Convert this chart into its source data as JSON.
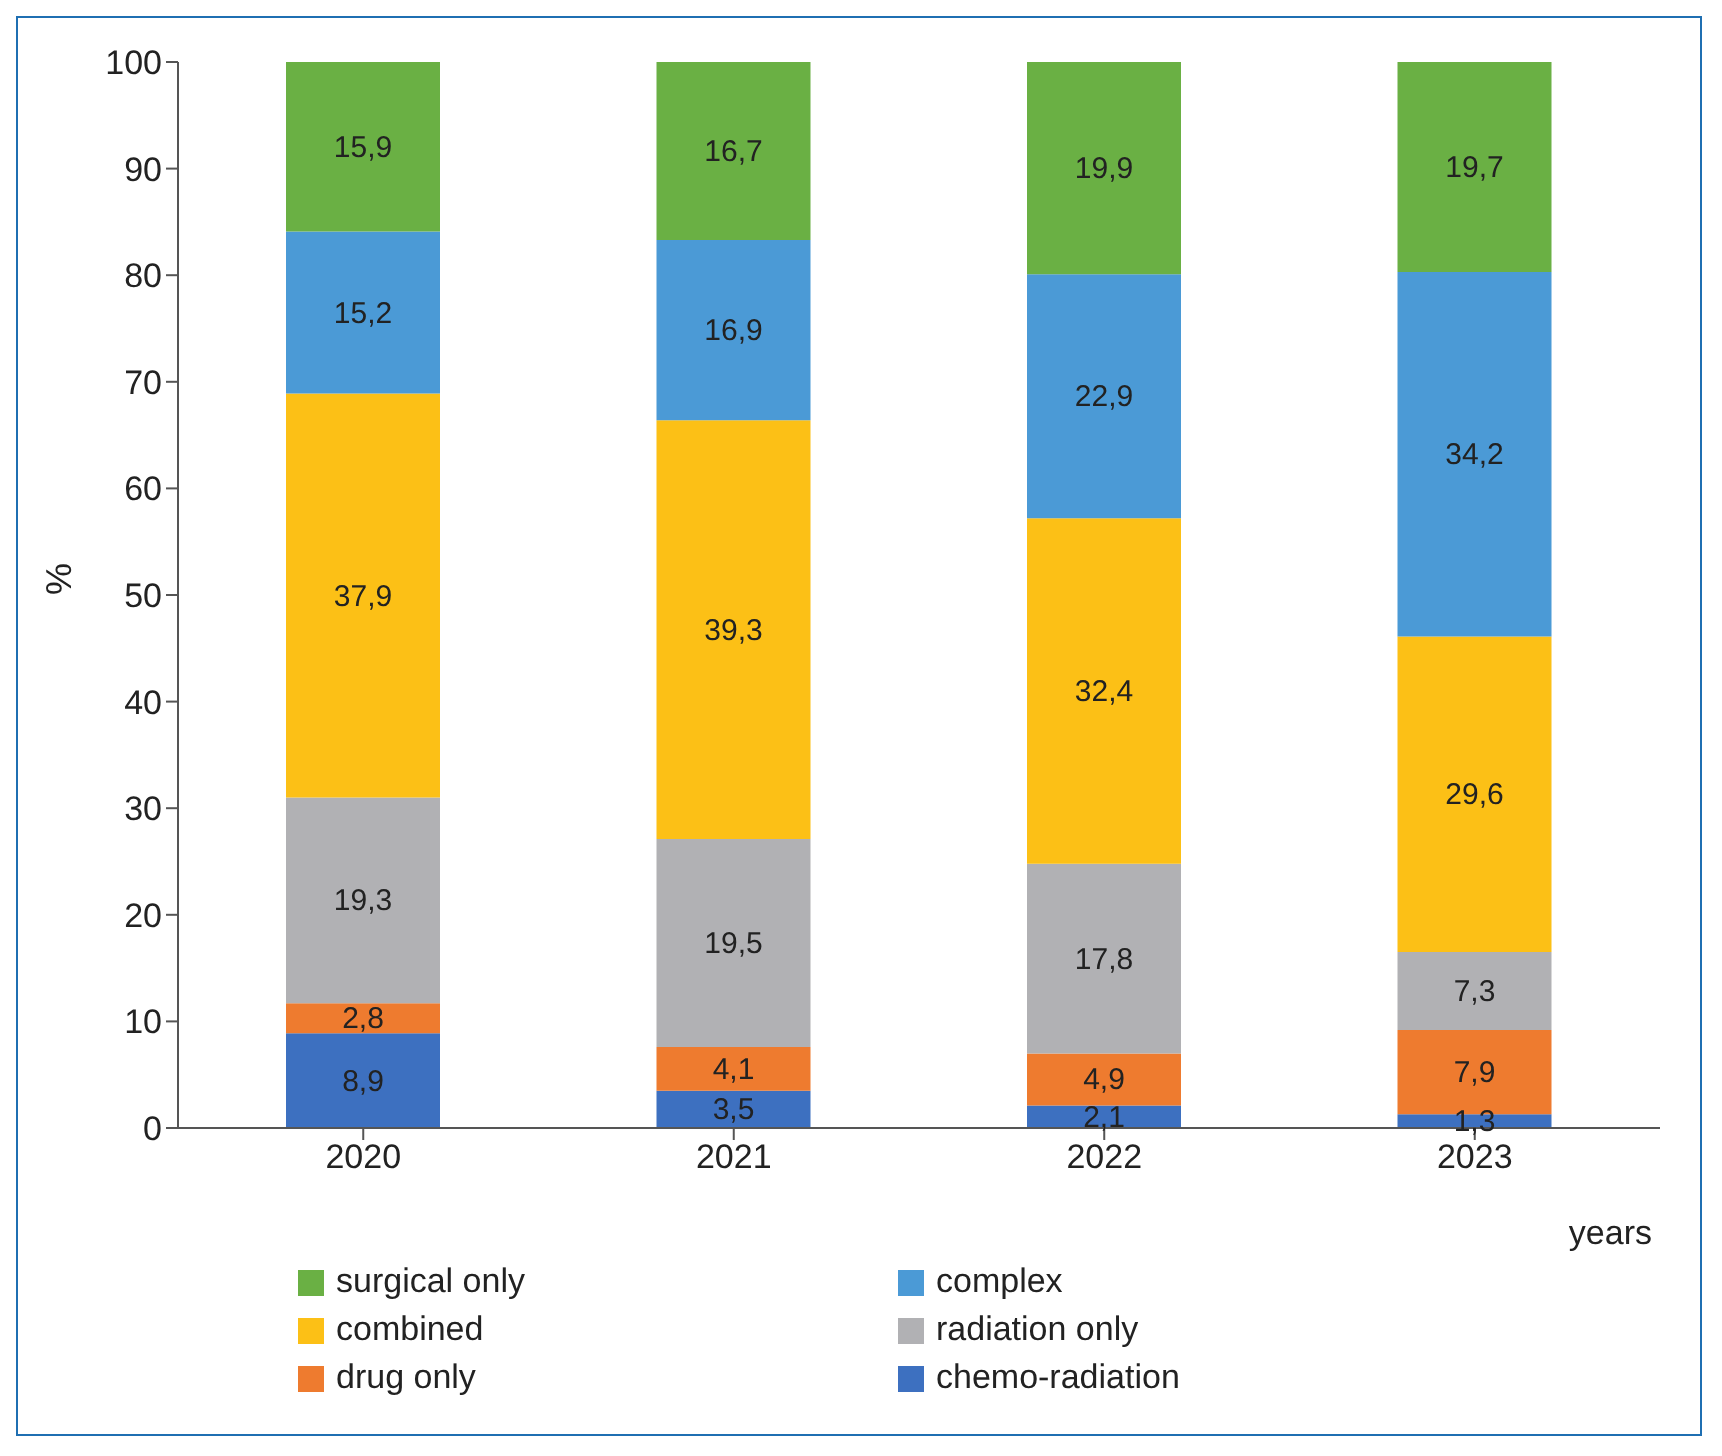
{
  "chart_data": {
    "type": "bar",
    "stacked": true,
    "ylabel": "%",
    "xlabel": "years",
    "categories": [
      "2020",
      "2021",
      "2022",
      "2023"
    ],
    "ylim": [
      0,
      100
    ],
    "yticks": [
      0,
      10,
      20,
      30,
      40,
      50,
      60,
      70,
      80,
      90,
      100
    ],
    "grid": false,
    "legend": "bottom",
    "series": [
      {
        "name": "chemo-radiation",
        "color": "#3d70c0",
        "values": [
          8.9,
          3.5,
          2.1,
          1.3
        ],
        "value_labels": [
          "8,9",
          "3,5",
          "2,1",
          "1,3"
        ]
      },
      {
        "name": "drug only",
        "color": "#ee7b2f",
        "values": [
          2.8,
          4.1,
          4.9,
          7.9
        ],
        "value_labels": [
          "2,8",
          "4,1",
          "4,9",
          "7,9"
        ]
      },
      {
        "name": "radiation only",
        "color": "#b1b1b4",
        "values": [
          19.3,
          19.5,
          17.8,
          7.3
        ],
        "value_labels": [
          "19,3",
          "19,5",
          "17,8",
          "7,3"
        ]
      },
      {
        "name": "combined",
        "color": "#fcc016",
        "values": [
          37.9,
          39.3,
          32.4,
          29.6
        ],
        "value_labels": [
          "37,9",
          "39,3",
          "32,4",
          "29,6"
        ]
      },
      {
        "name": "complex",
        "color": "#4b9ad6",
        "values": [
          15.2,
          16.9,
          22.9,
          34.2
        ],
        "value_labels": [
          "15,2",
          "16,9",
          "22,9",
          "34,2"
        ]
      },
      {
        "name": "surgical only",
        "color": "#6ab044",
        "values": [
          15.9,
          16.7,
          19.9,
          19.7
        ],
        "value_labels": [
          "15,9",
          "16,7",
          "19,9",
          "19,7"
        ]
      }
    ]
  }
}
